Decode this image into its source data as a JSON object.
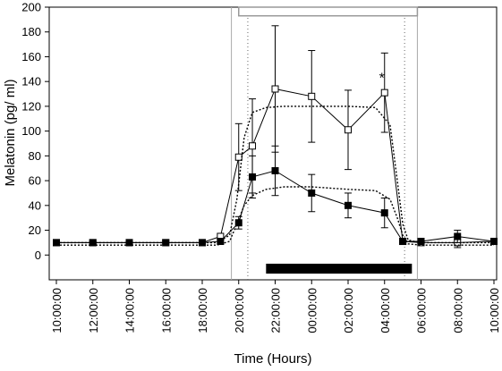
{
  "chart_data": {
    "type": "line",
    "xlabel": "Time (Hours)",
    "ylabel": "Melatonin (pg/ ml)",
    "ylim": [
      -20,
      200
    ],
    "y_ticks": [
      0,
      20,
      40,
      60,
      80,
      100,
      120,
      140,
      160,
      180,
      200
    ],
    "xlim_hours": [
      10,
      34
    ],
    "x_ticks": [
      {
        "hour": 10,
        "label": "10:00:00"
      },
      {
        "hour": 12,
        "label": "12:00:00"
      },
      {
        "hour": 14,
        "label": "14:00:00"
      },
      {
        "hour": 16,
        "label": "16:00:00"
      },
      {
        "hour": 18,
        "label": "18:00:00"
      },
      {
        "hour": 20,
        "label": "20:00:00"
      },
      {
        "hour": 22,
        "label": "22:00:00"
      },
      {
        "hour": 24,
        "label": "00:00:00"
      },
      {
        "hour": 26,
        "label": "02:00:00"
      },
      {
        "hour": 28,
        "label": "04:00:00"
      },
      {
        "hour": 30,
        "label": "06:00:00"
      },
      {
        "hour": 32,
        "label": "08:00:00"
      },
      {
        "hour": 34,
        "label": "10:00:00"
      }
    ],
    "grid": false,
    "legend": "none",
    "series": [
      {
        "marker": "open-square",
        "style": "solid",
        "x": [
          10,
          12,
          14,
          16,
          18,
          19,
          20,
          20.75,
          22,
          24,
          26,
          28,
          29,
          30,
          32,
          34
        ],
        "y": [
          10,
          10,
          10,
          10,
          10,
          15,
          79,
          88,
          134,
          128,
          101,
          131,
          11,
          10,
          10,
          11
        ],
        "err": [
          0,
          0,
          0,
          0,
          0,
          0,
          27,
          38,
          51,
          37,
          32,
          32,
          0,
          0,
          4,
          0
        ]
      },
      {
        "marker": "filled-square",
        "style": "solid",
        "x": [
          10,
          12,
          14,
          16,
          18,
          19,
          20,
          20.75,
          22,
          24,
          26,
          28,
          29,
          30,
          32,
          34
        ],
        "y": [
          10,
          10,
          10,
          10,
          10,
          11,
          26,
          63,
          68,
          50,
          40,
          34,
          11,
          11,
          15,
          11
        ],
        "err": [
          0,
          0,
          0,
          0,
          0,
          0,
          5,
          17,
          20,
          15,
          10,
          12,
          0,
          0,
          5,
          0
        ]
      },
      {
        "style": "dotted",
        "x": [
          10,
          18.8,
          19.5,
          19.9,
          20.3,
          20.75,
          21.5,
          22.5,
          24,
          26,
          27.5,
          28.3,
          28.7,
          29,
          29.3,
          30,
          34
        ],
        "y": [
          10,
          10,
          16,
          45,
          95,
          115,
          119,
          120,
          120,
          120,
          119,
          105,
          60,
          25,
          12,
          10,
          10
        ]
      },
      {
        "style": "dotted",
        "x": [
          10,
          18.8,
          19.5,
          19.9,
          20.3,
          20.75,
          21.5,
          22.5,
          24,
          26,
          27.5,
          28.3,
          28.7,
          29,
          29.3,
          30,
          34
        ],
        "y": [
          8,
          8,
          11,
          25,
          40,
          48,
          53,
          55,
          55,
          53,
          52,
          45,
          30,
          16,
          9,
          8,
          8
        ]
      }
    ],
    "annotations": [
      {
        "text": "*",
        "x": 27.85,
        "y": 139
      }
    ],
    "intervals": [
      {
        "kind": "open-bar",
        "x0": 20,
        "x1": 29.8,
        "y0": 193,
        "y1": 200
      },
      {
        "kind": "filled-bar",
        "x0": 21.5,
        "x1": 29.5,
        "y0": -15,
        "y1": -7
      }
    ],
    "reference_lines": [
      {
        "x": 19.6,
        "style": "solid-grey"
      },
      {
        "x": 20.5,
        "style": "dotted"
      },
      {
        "x": 29.1,
        "style": "dotted"
      },
      {
        "x": 29.8,
        "style": "solid-grey"
      }
    ]
  }
}
